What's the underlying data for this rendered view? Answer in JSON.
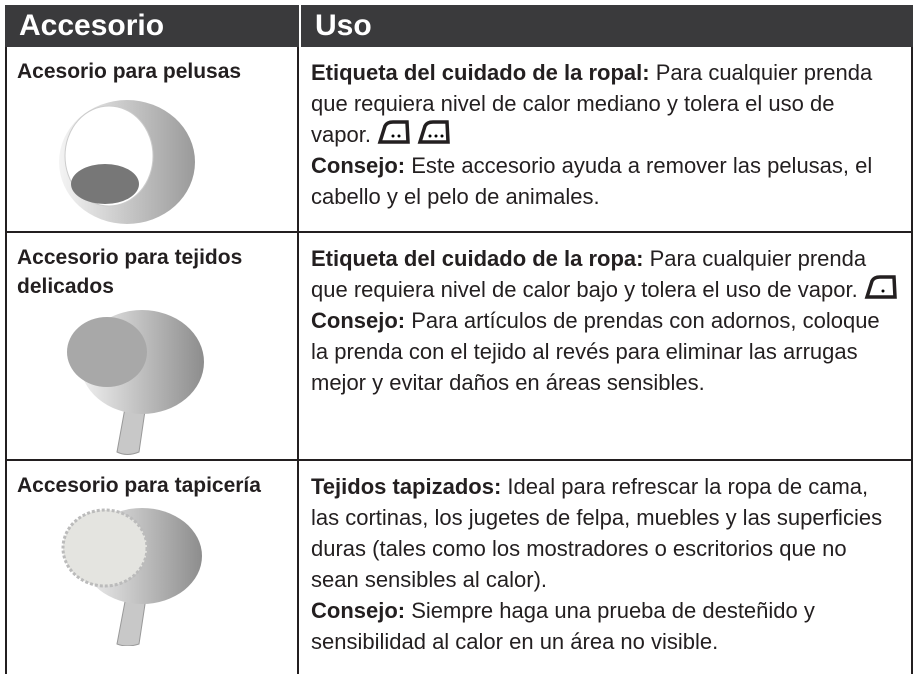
{
  "table": {
    "header": [
      "Accesorio",
      "Uso"
    ],
    "rows": [
      {
        "accessory": "Acesorio para pelusas",
        "use": [
          {
            "label": "Etiqueta del cuidado de la ropal:",
            "text": "Para cualquier prenda que requiera nivel de calor mediano y tolera el uso de vapor."
          },
          {
            "label": "Consejo:",
            "text": "Este accesorio ayuda a remover las pelusas, el cabello y el pelo de animales."
          }
        ]
      },
      {
        "accessory": "Accesorio para tejidos delicados",
        "use": [
          {
            "label": "Etiqueta del cuidado de la ropa:",
            "text": "Para cualquier prenda que requiera nivel de calor bajo y tolera el uso de vapor."
          },
          {
            "label": "Consejo:",
            "text": "Para artículos de prendas con adornos, coloque la prenda con el tejido al revés para eliminar las arrugas mejor y evitar daños en áreas sensibles."
          }
        ]
      },
      {
        "accessory": "Accesorio para tapicería",
        "use": [
          {
            "label": "Tejidos tapizados:",
            "text": "Ideal para refrescar la ropa de cama, las cortinas, los jugetes de felpa, muebles y las superficies duras (tales como los mostradores o escritorios que no sean sensibles al calor)."
          },
          {
            "label": "Consejo:",
            "text": "Siempre haga una prueba de desteñido y sensibilidad al calor en un área no visible."
          }
        ]
      }
    ]
  }
}
